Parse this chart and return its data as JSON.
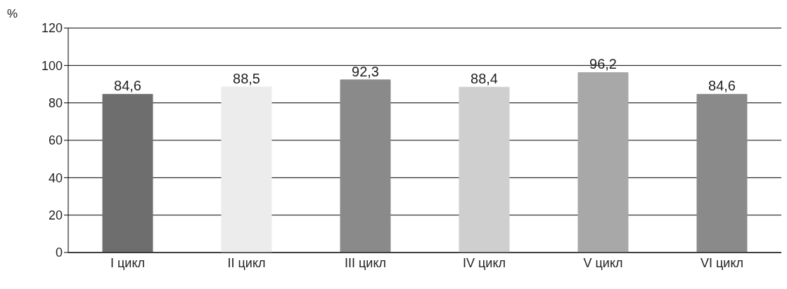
{
  "chart_data": {
    "type": "bar",
    "ylabel": "%",
    "categories": [
      "I цикл",
      "II цикл",
      "III цикл",
      "IV цикл",
      "V цикл",
      "VI цикл"
    ],
    "values": [
      84.6,
      88.5,
      92.3,
      88.4,
      96.2,
      84.6
    ],
    "value_labels": [
      "84,6",
      "88,5",
      "92,3",
      "88,4",
      "96,2",
      "84,6"
    ],
    "colors": [
      "#6e6e6e",
      "#ececec",
      "#8a8a8a",
      "#cfcfcf",
      "#a8a8a8",
      "#8a8a8a"
    ],
    "ylim": [
      0,
      120
    ],
    "yticks": [
      0,
      20,
      40,
      60,
      80,
      100,
      120
    ],
    "grid": "y",
    "legend": false
  }
}
